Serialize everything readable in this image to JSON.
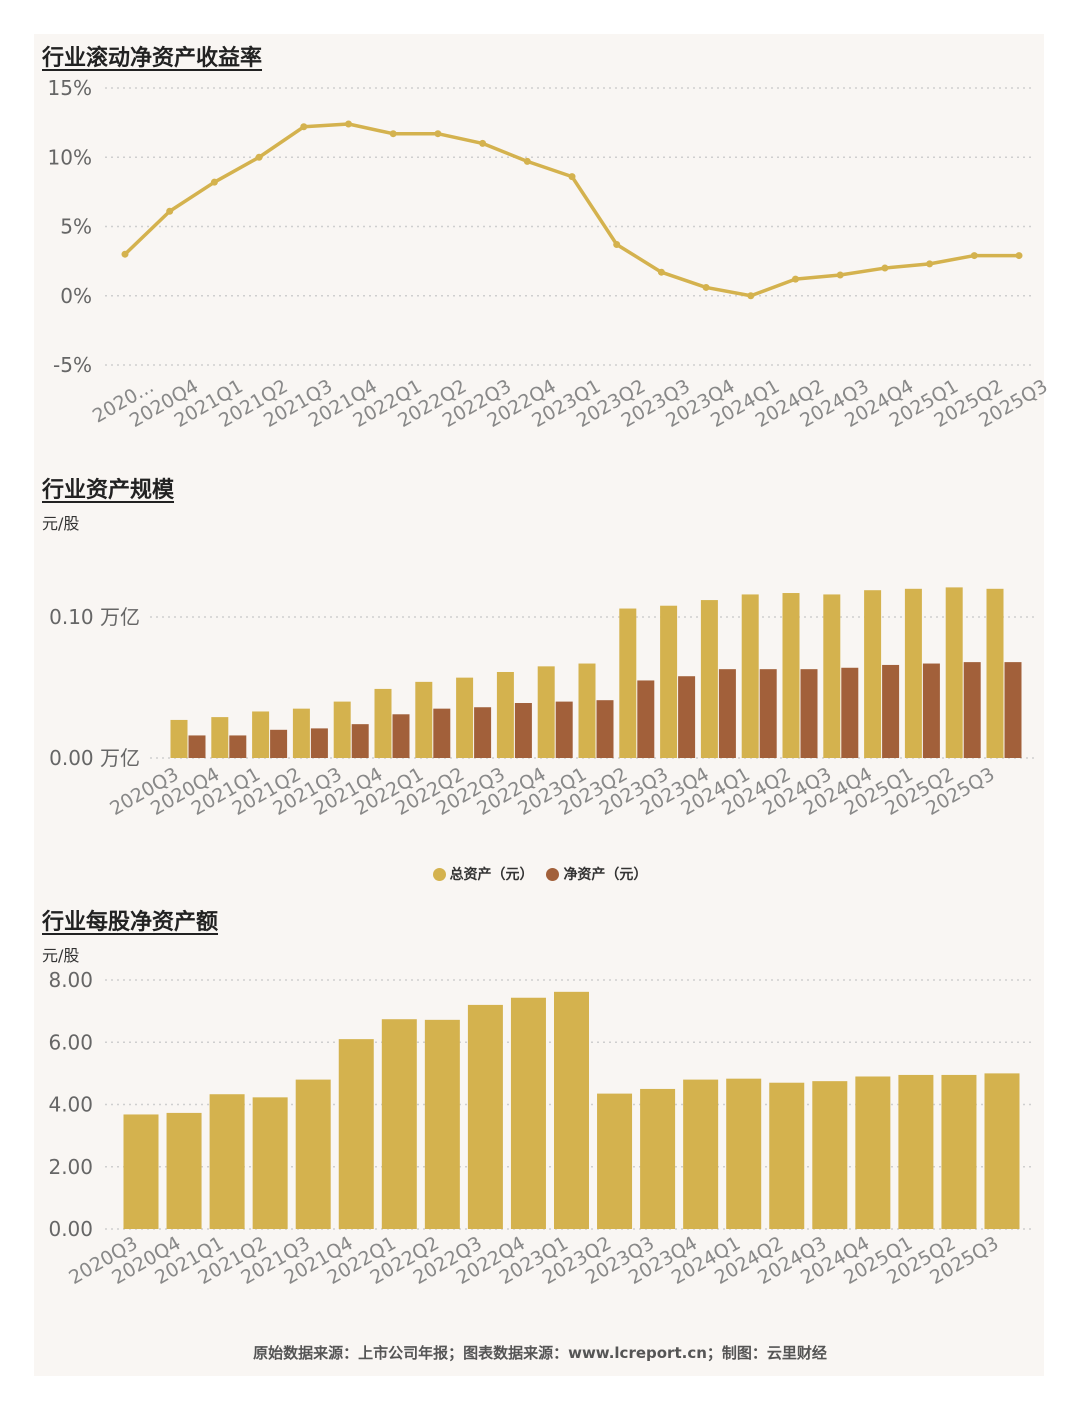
{
  "colors": {
    "gold": "#d4b24e",
    "brown": "#a2603a",
    "panel": "#f9f6f3",
    "grid": "#cfcfcf"
  },
  "footer": "原始数据来源：上市公司年报；图表数据来源：www.lcreport.cn；制图：云里财经",
  "chart_data": [
    {
      "type": "line",
      "title": "行业滚动净资产收益率",
      "categories": [
        "2020...",
        "2020Q4",
        "2021Q1",
        "2021Q2",
        "2021Q3",
        "2021Q4",
        "2022Q1",
        "2022Q2",
        "2022Q3",
        "2022Q4",
        "2023Q1",
        "2023Q2",
        "2023Q3",
        "2023Q4",
        "2024Q1",
        "2024Q2",
        "2024Q3",
        "2024Q4",
        "2025Q1",
        "2025Q2",
        "2025Q3"
      ],
      "series": [
        {
          "values": [
            3.0,
            6.1,
            8.2,
            10.0,
            12.2,
            12.4,
            11.7,
            11.7,
            11.0,
            9.7,
            8.6,
            3.7,
            1.7,
            0.6,
            0.0,
            1.2,
            1.5,
            2.0,
            2.3,
            2.9,
            2.9
          ]
        }
      ],
      "yticks": [
        "15%",
        "10%",
        "5%",
        "0%",
        "-5%"
      ],
      "ylim": [
        -5,
        15
      ],
      "grid": true
    },
    {
      "type": "bar",
      "title": "行业资产规模",
      "unit": "元/股",
      "categories": [
        "2020Q3",
        "2020Q4",
        "2021Q1",
        "2021Q2",
        "2021Q3",
        "2021Q4",
        "2022Q1",
        "2022Q2",
        "2022Q3",
        "2022Q4",
        "2023Q1",
        "2023Q2",
        "2023Q3",
        "2023Q4",
        "2024Q1",
        "2024Q2",
        "2024Q3",
        "2024Q4",
        "2025Q1",
        "2025Q2",
        "2025Q3"
      ],
      "series": [
        {
          "name": "总资产（元）",
          "values": [
            0.027,
            0.029,
            0.033,
            0.035,
            0.04,
            0.049,
            0.054,
            0.057,
            0.061,
            0.065,
            0.067,
            0.106,
            0.108,
            0.112,
            0.116,
            0.117,
            0.116,
            0.119,
            0.12,
            0.121,
            0.12
          ]
        },
        {
          "name": "净资产（元）",
          "values": [
            0.016,
            0.016,
            0.02,
            0.021,
            0.024,
            0.031,
            0.035,
            0.036,
            0.039,
            0.04,
            0.041,
            0.055,
            0.058,
            0.063,
            0.063,
            0.063,
            0.064,
            0.066,
            0.067,
            0.068,
            0.068
          ]
        }
      ],
      "yticks": [
        "0.10 万亿",
        "0.00 万亿"
      ],
      "ylim": [
        0,
        0.13
      ],
      "legend": "bottom-center",
      "grid": true
    },
    {
      "type": "bar",
      "title": "行业每股净资产额",
      "unit": "元/股",
      "categories": [
        "2020Q3",
        "2020Q4",
        "2021Q1",
        "2021Q2",
        "2021Q3",
        "2021Q4",
        "2022Q1",
        "2022Q2",
        "2022Q3",
        "2022Q4",
        "2023Q1",
        "2023Q2",
        "2023Q3",
        "2023Q4",
        "2024Q1",
        "2024Q2",
        "2024Q3",
        "2024Q4",
        "2025Q1",
        "2025Q2",
        "2025Q3"
      ],
      "series": [
        {
          "values": [
            3.68,
            3.73,
            4.33,
            4.23,
            4.8,
            6.1,
            6.74,
            6.72,
            7.2,
            7.43,
            7.62,
            4.35,
            4.5,
            4.8,
            4.83,
            4.7,
            4.75,
            4.9,
            4.95,
            4.95,
            5.0
          ]
        }
      ],
      "yticks": [
        "8.00",
        "6.00",
        "4.00",
        "2.00",
        "0.00"
      ],
      "ylim": [
        0,
        8
      ],
      "grid": true
    }
  ]
}
